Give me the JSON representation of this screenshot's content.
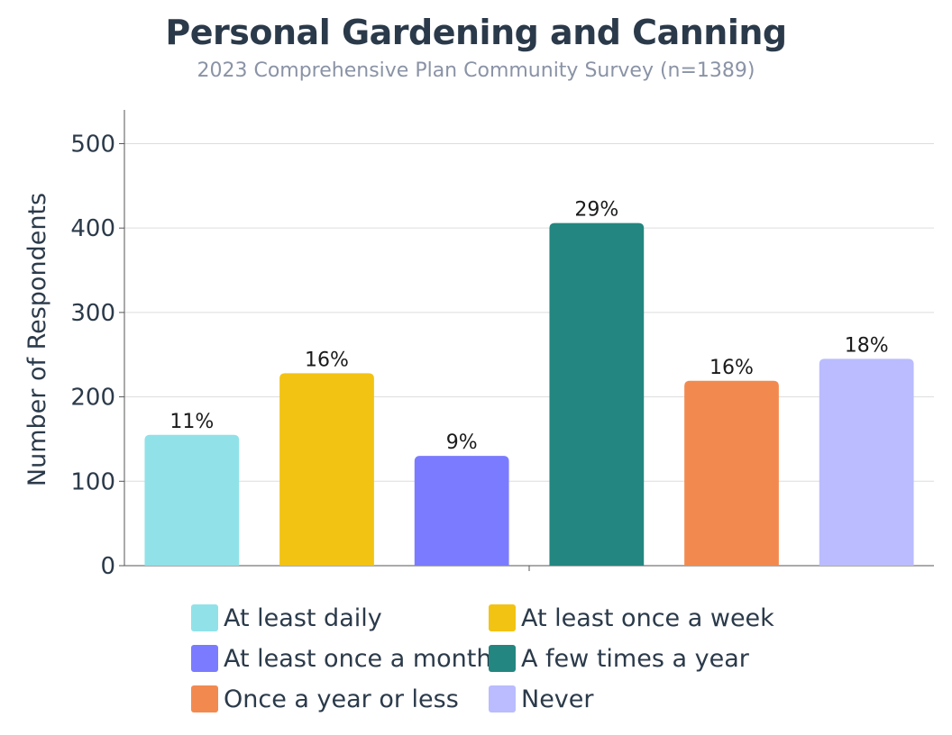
{
  "chart_data": {
    "type": "bar",
    "title": "Personal Gardening and Canning",
    "subtitle": "2023 Comprehensive Plan Community Survey (n=1389)",
    "xlabel": "",
    "ylabel": "Number of Respondents",
    "ylim": [
      0,
      540
    ],
    "yticks": [
      0,
      100,
      200,
      300,
      400,
      500
    ],
    "grid": true,
    "legend_position": "bottom",
    "categories": [
      "At least daily",
      "At least once a week",
      "At least once a month",
      "A few times a year",
      "Once a year or less",
      "Never"
    ],
    "values": [
      155,
      228,
      130,
      406,
      219,
      245
    ],
    "labels": [
      "11%",
      "16%",
      "9%",
      "29%",
      "16%",
      "18%"
    ],
    "colors": [
      "#90e2e8",
      "#f2c313",
      "#7b7bff",
      "#238680",
      "#f28a50",
      "#babcff"
    ]
  }
}
